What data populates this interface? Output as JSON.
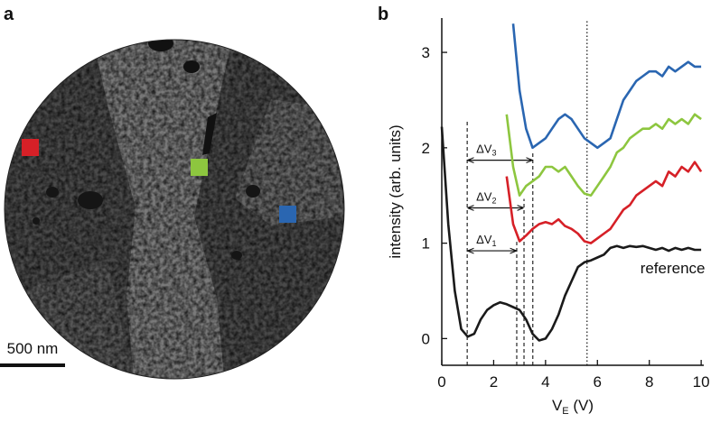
{
  "panel_a": {
    "label": "a",
    "scale_bar": "500 nm"
  },
  "chart_data": {
    "type": "line",
    "panel_label": "b",
    "ylabel": "intensity (arb. units)",
    "xlabel": {
      "text": "V",
      "subscript": "E",
      "suffix": " (V)"
    },
    "x": [
      0,
      0.25,
      0.5,
      0.75,
      1,
      1.25,
      1.5,
      1.75,
      2,
      2.25,
      2.5,
      2.75,
      3,
      3.25,
      3.5,
      3.75,
      4,
      4.25,
      4.5,
      4.75,
      5,
      5.25,
      5.5,
      5.75,
      6,
      6.25,
      6.5,
      6.75,
      7,
      7.25,
      7.5,
      7.75,
      8,
      8.25,
      8.5,
      8.75,
      9,
      9.25,
      9.5,
      9.75,
      10
    ],
    "series": [
      {
        "name": "reference",
        "color": "#1a1a1a",
        "values": [
          2.22,
          1.2,
          0.5,
          0.1,
          0.02,
          0.05,
          0.2,
          0.3,
          0.35,
          0.38,
          0.36,
          0.33,
          0.3,
          0.2,
          0.05,
          -0.02,
          0.0,
          0.1,
          0.25,
          0.45,
          0.6,
          0.75,
          0.8,
          0.82,
          0.85,
          0.88,
          0.95,
          0.97,
          0.95,
          0.97,
          0.96,
          0.97,
          0.95,
          0.93,
          0.95,
          0.92,
          0.95,
          0.93,
          0.95,
          0.93,
          0.93
        ]
      },
      {
        "color": "#d62027",
        "values": [
          null,
          null,
          null,
          null,
          null,
          null,
          null,
          null,
          null,
          null,
          1.7,
          1.2,
          1.02,
          1.08,
          1.15,
          1.2,
          1.22,
          1.2,
          1.25,
          1.18,
          1.15,
          1.1,
          1.02,
          1.0,
          1.05,
          1.1,
          1.15,
          1.25,
          1.35,
          1.4,
          1.5,
          1.55,
          1.6,
          1.65,
          1.6,
          1.75,
          1.7,
          1.8,
          1.75,
          1.85,
          1.75
        ]
      },
      {
        "color": "#8dc63f",
        "values": [
          null,
          null,
          null,
          null,
          null,
          null,
          null,
          null,
          null,
          null,
          2.35,
          1.8,
          1.5,
          1.6,
          1.65,
          1.7,
          1.8,
          1.8,
          1.75,
          1.8,
          1.7,
          1.6,
          1.52,
          1.5,
          1.6,
          1.7,
          1.8,
          1.95,
          2.0,
          2.1,
          2.15,
          2.2,
          2.2,
          2.25,
          2.2,
          2.3,
          2.25,
          2.3,
          2.25,
          2.35,
          2.3
        ]
      },
      {
        "color": "#2a66b1",
        "values": [
          null,
          null,
          null,
          null,
          null,
          null,
          null,
          null,
          null,
          null,
          null,
          3.3,
          2.6,
          2.2,
          2.0,
          2.05,
          2.1,
          2.2,
          2.3,
          2.35,
          2.3,
          2.2,
          2.1,
          2.05,
          2.0,
          2.05,
          2.1,
          2.3,
          2.5,
          2.6,
          2.7,
          2.75,
          2.8,
          2.8,
          2.75,
          2.85,
          2.8,
          2.85,
          2.9,
          2.85,
          2.85
        ]
      }
    ],
    "intervals": [
      {
        "text": "ΔV",
        "subscript": "1",
        "x1": 0.98,
        "x2": 2.89,
        "y": 0.92
      },
      {
        "text": "ΔV",
        "subscript": "2",
        "x1": 0.98,
        "x2": 3.17,
        "y": 1.37
      },
      {
        "text": "ΔV",
        "subscript": "3",
        "x1": 0.98,
        "x2": 3.51,
        "y": 1.87
      }
    ],
    "dotted_line": 5.6,
    "xlim": [
      0,
      10.1
    ],
    "ylim": [
      -0.28,
      3.36
    ],
    "xticks": [
      0,
      2,
      4,
      6,
      8,
      10
    ],
    "yticks": [
      0,
      1,
      2,
      3
    ]
  }
}
